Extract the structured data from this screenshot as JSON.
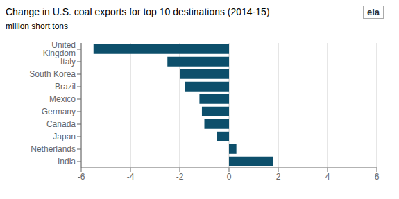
{
  "chart_data": {
    "type": "bar",
    "orientation": "horizontal",
    "title": "Change in U.S. coal exports for top 10 destinations (2014-15)",
    "subtitle": "million short tons",
    "annotations": [
      "eia"
    ],
    "categories": [
      "United Kingdom",
      "Italy",
      "South Korea",
      "Brazil",
      "Mexico",
      "Germany",
      "Canada",
      "Japan",
      "Netherlands",
      "India"
    ],
    "values": [
      -5.5,
      -2.5,
      -2.0,
      -1.8,
      -1.2,
      -1.1,
      -1.0,
      -0.5,
      0.3,
      1.8
    ],
    "color": "#0d4f6b",
    "xlim": [
      -6,
      6
    ],
    "xticks": [
      -6,
      -4,
      -2,
      0,
      2,
      4,
      6
    ],
    "grid": true
  }
}
